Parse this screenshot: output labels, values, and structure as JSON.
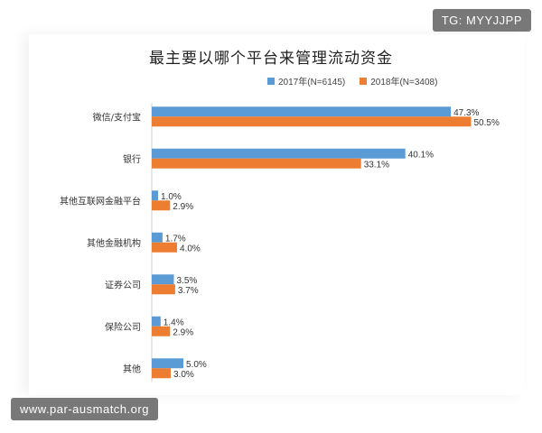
{
  "watermark_top_right": "TG: MYYJJPP",
  "watermark_bottom_left": "www.par-ausmatch.org",
  "chart_data": {
    "type": "bar",
    "orientation": "horizontal",
    "title": "最主要以哪个平台来管理流动资金",
    "categories": [
      "微信/支付宝",
      "银行",
      "其他互联网金融平台",
      "其他金融机构",
      "证券公司",
      "保险公司",
      "其他"
    ],
    "series": [
      {
        "name": "2017年(N=6145)",
        "color": "#5B9BD5",
        "values": [
          47.3,
          40.1,
          1.0,
          1.7,
          3.5,
          1.4,
          5.0
        ],
        "labels": [
          "47.3%",
          "40.1%",
          "1.0%",
          "1.7%",
          "3.5%",
          "1.4%",
          "5.0%"
        ]
      },
      {
        "name": "2018年(N=3408)",
        "color": "#ED7D31",
        "values": [
          50.5,
          33.1,
          2.9,
          4.0,
          3.7,
          2.9,
          3.0
        ],
        "labels": [
          "50.5%",
          "33.1%",
          "2.9%",
          "4.0%",
          "3.7%",
          "2.9%",
          "3.0%"
        ]
      }
    ],
    "xlim": [
      0,
      60
    ],
    "unit": "%",
    "legend_position": "top",
    "grid": false
  }
}
